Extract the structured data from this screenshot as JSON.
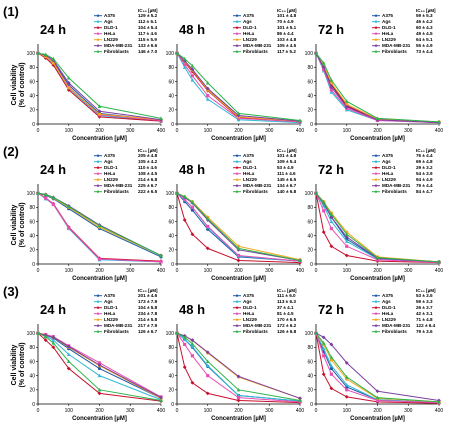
{
  "figure": {
    "shared_axes": {
      "ylabel": "Cell viability\n(% of control)",
      "xlabel": "Concentration [µM]",
      "ic50_header": "IC₅₀ [µM]"
    },
    "rows": [
      {
        "label": "(1)"
      },
      {
        "label": "(2)"
      },
      {
        "label": "(3)"
      }
    ]
  },
  "series_colors": {
    "A375": "#1e5aa8",
    "Ags": "#2eb8d6",
    "DLD-1": "#c8102e",
    "HeLa": "#e84fb4",
    "LN229": "#f2a81d",
    "MDA-MB-231": "#7b3fa0",
    "Fibroblasts": "#2db34a"
  },
  "chart_data": [
    {
      "type": "line",
      "title": "24 h",
      "row": "(1)",
      "x": [
        0,
        25,
        50,
        100,
        200,
        400
      ],
      "xticks": [
        0,
        100,
        200,
        300,
        400
      ],
      "xlim": [
        0,
        400
      ],
      "yticks": [
        0,
        20,
        40,
        60,
        80,
        100
      ],
      "ylim": [
        0,
        110
      ],
      "xlabel": "Concentration [µM]",
      "ylabel": "Cell viability\n(% of control)",
      "ic50_header": "IC₅₀ [µM]",
      "series": [
        {
          "name": "A375",
          "ic50": "129 ± 5.2",
          "values": [
            100,
            95,
            88,
            55,
            15,
            5
          ]
        },
        {
          "name": "Ags",
          "ic50": "112 ± 6.1",
          "values": [
            100,
            94,
            85,
            50,
            12,
            4
          ]
        },
        {
          "name": "DLD-1",
          "ic50": "104 ± 5.4",
          "values": [
            100,
            93,
            83,
            48,
            10,
            4
          ]
        },
        {
          "name": "HeLa",
          "ic50": "117 ± 4.6",
          "values": [
            100,
            96,
            87,
            52,
            13,
            5
          ]
        },
        {
          "name": "LN229",
          "ic50": "115 ± 5.9",
          "values": [
            100,
            95,
            86,
            51,
            14,
            6
          ]
        },
        {
          "name": "MDA-MB-231",
          "ic50": "133 ± 6.6",
          "values": [
            100,
            97,
            90,
            58,
            18,
            6
          ]
        },
        {
          "name": "Fibroblasts",
          "ic50": "146 ± 7.0",
          "values": [
            100,
            98,
            92,
            65,
            25,
            8
          ]
        }
      ]
    },
    {
      "type": "line",
      "title": "48 h",
      "row": "(1)",
      "x": [
        0,
        25,
        50,
        100,
        200,
        400
      ],
      "xticks": [
        0,
        100,
        200,
        300,
        400
      ],
      "xlim": [
        0,
        400
      ],
      "yticks": [
        0,
        20,
        40,
        60,
        80,
        100
      ],
      "ylim": [
        0,
        110
      ],
      "xlabel": "Concentration [µM]",
      "ylabel": "Cell viability\n(% of control)",
      "ic50_header": "IC₅₀ [µM]",
      "series": [
        {
          "name": "A375",
          "ic50": "101 ± 4.8",
          "values": [
            100,
            88,
            75,
            48,
            10,
            3
          ]
        },
        {
          "name": "Ags",
          "ic50": "70 ± 4.9",
          "values": [
            100,
            80,
            62,
            35,
            6,
            2
          ]
        },
        {
          "name": "DLD-1",
          "ic50": "101 ± 5.1",
          "values": [
            100,
            87,
            74,
            47,
            9,
            3
          ]
        },
        {
          "name": "HeLa",
          "ic50": "86 ± 4.4",
          "values": [
            100,
            84,
            68,
            40,
            8,
            3
          ]
        },
        {
          "name": "LN229",
          "ic50": "103 ± 4.8",
          "values": [
            100,
            88,
            76,
            48,
            10,
            4
          ]
        },
        {
          "name": "MDA-MB-231",
          "ic50": "105 ± 4.5",
          "values": [
            100,
            89,
            77,
            50,
            12,
            4
          ]
        },
        {
          "name": "Fibroblasts",
          "ic50": "117 ± 5.2",
          "values": [
            100,
            92,
            82,
            58,
            15,
            5
          ]
        }
      ]
    },
    {
      "type": "line",
      "title": "72 h",
      "row": "(1)",
      "x": [
        0,
        25,
        50,
        100,
        200,
        400
      ],
      "xticks": [
        0,
        100,
        200,
        300,
        400
      ],
      "xlim": [
        0,
        400
      ],
      "yticks": [
        0,
        20,
        40,
        60,
        80,
        100
      ],
      "ylim": [
        0,
        110
      ],
      "xlabel": "Concentration [µM]",
      "ylabel": "Cell viability\n(% of control)",
      "ic50_header": "IC₅₀ [µM]",
      "series": [
        {
          "name": "A375",
          "ic50": "59 ± 5.3",
          "values": [
            100,
            80,
            55,
            25,
            6,
            2
          ]
        },
        {
          "name": "Ags",
          "ic50": "46 ± 4.2",
          "values": [
            100,
            75,
            45,
            20,
            5,
            2
          ]
        },
        {
          "name": "DLD-1",
          "ic50": "60 ± 4.3",
          "values": [
            100,
            82,
            56,
            26,
            6,
            2
          ]
        },
        {
          "name": "HeLa",
          "ic50": "49 ± 4.5",
          "values": [
            100,
            77,
            48,
            22,
            5,
            2
          ]
        },
        {
          "name": "LN229",
          "ic50": "64 ± 5.1",
          "values": [
            100,
            83,
            58,
            28,
            7,
            3
          ]
        },
        {
          "name": "MDA-MB-231",
          "ic50": "55 ± 4.9",
          "values": [
            100,
            80,
            52,
            24,
            6,
            2
          ]
        },
        {
          "name": "Fibroblasts",
          "ic50": "73 ± 4.4",
          "values": [
            100,
            86,
            62,
            32,
            8,
            3
          ]
        }
      ]
    },
    {
      "type": "line",
      "title": "24 h",
      "row": "(2)",
      "x": [
        0,
        25,
        50,
        100,
        200,
        400
      ],
      "xticks": [
        0,
        100,
        200,
        300,
        400
      ],
      "xlim": [
        0,
        400
      ],
      "yticks": [
        0,
        20,
        40,
        60,
        80,
        100
      ],
      "ylim": [
        0,
        110
      ],
      "xlabel": "Concentration [µM]",
      "ylabel": "Cell viability\n(% of control)",
      "ic50_header": "IC₅₀ [µM]",
      "series": [
        {
          "name": "A375",
          "ic50": "205 ± 4.8",
          "values": [
            100,
            97,
            92,
            78,
            50,
            10
          ]
        },
        {
          "name": "Ags",
          "ic50": "105 ± 4.2",
          "values": [
            100,
            92,
            84,
            50,
            6,
            3
          ]
        },
        {
          "name": "DLD-1",
          "ic50": "110 ± 4.6",
          "values": [
            100,
            93,
            85,
            52,
            8,
            4
          ]
        },
        {
          "name": "HeLa",
          "ic50": "108 ± 4.5",
          "values": [
            100,
            93,
            84,
            51,
            7,
            3
          ]
        },
        {
          "name": "LN229",
          "ic50": "214 ± 6.8",
          "values": [
            100,
            98,
            93,
            80,
            52,
            12
          ]
        },
        {
          "name": "MDA-MB-231",
          "ic50": "225 ± 6.7",
          "values": [
            100,
            98,
            94,
            82,
            55,
            12
          ]
        },
        {
          "name": "Fibroblasts",
          "ic50": "222 ± 6.5",
          "values": [
            100,
            98,
            94,
            81,
            54,
            12
          ]
        }
      ]
    },
    {
      "type": "line",
      "title": "48 h",
      "row": "(2)",
      "x": [
        0,
        25,
        50,
        100,
        200,
        400
      ],
      "xticks": [
        0,
        100,
        200,
        300,
        400
      ],
      "xlim": [
        0,
        400
      ],
      "yticks": [
        0,
        20,
        40,
        60,
        80,
        100
      ],
      "ylim": [
        0,
        110
      ],
      "xlabel": "Concentration [µM]",
      "ylabel": "Cell viability\n(% of control)",
      "ic50_header": "IC₅₀ [µM]",
      "series": [
        {
          "name": "A375",
          "ic50": "101 ± 4.8",
          "values": [
            100,
            88,
            76,
            49,
            10,
            4
          ]
        },
        {
          "name": "Ags",
          "ic50": "109 ± 5.4",
          "values": [
            100,
            90,
            80,
            52,
            11,
            4
          ]
        },
        {
          "name": "DLD-1",
          "ic50": "53 ± 4.9",
          "values": [
            100,
            62,
            42,
            22,
            5,
            2
          ]
        },
        {
          "name": "HeLa",
          "ic50": "111 ± 4.6",
          "values": [
            100,
            91,
            80,
            53,
            12,
            4
          ]
        },
        {
          "name": "LN229",
          "ic50": "145 ± 6.5",
          "values": [
            100,
            95,
            88,
            66,
            25,
            6
          ]
        },
        {
          "name": "MDA-MB-231",
          "ic50": "134 ± 6.7",
          "values": [
            100,
            94,
            86,
            62,
            20,
            5
          ]
        },
        {
          "name": "Fibroblasts",
          "ic50": "140 ± 6.8",
          "values": [
            100,
            95,
            87,
            64,
            22,
            5
          ]
        }
      ]
    },
    {
      "type": "line",
      "title": "72 h",
      "row": "(2)",
      "x": [
        0,
        25,
        50,
        100,
        200,
        400
      ],
      "xticks": [
        0,
        100,
        200,
        300,
        400
      ],
      "xlim": [
        0,
        400
      ],
      "yticks": [
        0,
        20,
        40,
        60,
        80,
        100
      ],
      "ylim": [
        0,
        110
      ],
      "xlabel": "Concentration [µM]",
      "ylabel": "Cell viability\n(% of control)",
      "ic50_header": "IC₅₀ [µM]",
      "series": [
        {
          "name": "A375",
          "ic50": "76 ± 4.4",
          "values": [
            100,
            85,
            66,
            35,
            8,
            3
          ]
        },
        {
          "name": "Ags",
          "ic50": "69 ± 4.8",
          "values": [
            100,
            82,
            60,
            32,
            7,
            3
          ]
        },
        {
          "name": "DLD-1",
          "ic50": "29 ± 3.2",
          "values": [
            100,
            45,
            25,
            12,
            4,
            2
          ]
        },
        {
          "name": "HeLa",
          "ic50": "54 ± 3.9",
          "values": [
            100,
            75,
            50,
            25,
            6,
            2
          ]
        },
        {
          "name": "LN229",
          "ic50": "94 ± 4.9",
          "values": [
            100,
            88,
            72,
            45,
            10,
            3
          ]
        },
        {
          "name": "MDA-MB-231",
          "ic50": "79 ± 4.4",
          "values": [
            100,
            86,
            66,
            38,
            8,
            3
          ]
        },
        {
          "name": "Fibroblasts",
          "ic50": "84 ± 4.7",
          "values": [
            100,
            87,
            70,
            42,
            9,
            3
          ]
        }
      ]
    },
    {
      "type": "line",
      "title": "24 h",
      "row": "(3)",
      "x": [
        0,
        25,
        50,
        100,
        200,
        400
      ],
      "xticks": [
        0,
        100,
        200,
        300,
        400
      ],
      "xlim": [
        0,
        400
      ],
      "yticks": [
        0,
        20,
        40,
        60,
        80,
        100
      ],
      "ylim": [
        0,
        110
      ],
      "xlabel": "Concentration [µM]",
      "ylabel": "Cell viability\n(% of control)",
      "ic50_header": "IC₅₀ [µM]",
      "series": [
        {
          "name": "A375",
          "ic50": "201 ± 4.6",
          "values": [
            100,
            97,
            93,
            78,
            50,
            8
          ]
        },
        {
          "name": "Ags",
          "ic50": "173 ± 7.9",
          "values": [
            100,
            96,
            90,
            70,
            40,
            6
          ]
        },
        {
          "name": "DLD-1",
          "ic50": "104 ± 5.8",
          "values": [
            100,
            90,
            80,
            50,
            15,
            4
          ]
        },
        {
          "name": "HeLa",
          "ic50": "234 ± 7.8",
          "values": [
            100,
            98,
            95,
            82,
            58,
            10
          ]
        },
        {
          "name": "LN229",
          "ic50": "214 ± 5.8",
          "values": [
            100,
            97,
            94,
            80,
            54,
            8
          ]
        },
        {
          "name": "MDA-MB-231",
          "ic50": "217 ± 7.9",
          "values": [
            100,
            97,
            94,
            81,
            55,
            9
          ]
        },
        {
          "name": "Fibroblasts",
          "ic50": "126 ± 6.7",
          "values": [
            100,
            95,
            86,
            60,
            20,
            5
          ]
        }
      ]
    },
    {
      "type": "line",
      "title": "48 h",
      "row": "(3)",
      "x": [
        0,
        25,
        50,
        100,
        200,
        400
      ],
      "xticks": [
        0,
        100,
        200,
        300,
        400
      ],
      "xlim": [
        0,
        400
      ],
      "yticks": [
        0,
        20,
        40,
        60,
        80,
        100
      ],
      "ylim": [
        0,
        110
      ],
      "xlabel": "Concentration [µM]",
      "ylabel": "Cell viability\n(% of control)",
      "ic50_header": "IC₅₀ [µM]",
      "series": [
        {
          "name": "A375",
          "ic50": "111 ± 6.0",
          "values": [
            100,
            91,
            80,
            53,
            12,
            4
          ]
        },
        {
          "name": "Ags",
          "ic50": "113 ± 6.3",
          "values": [
            100,
            91,
            81,
            54,
            12,
            4
          ]
        },
        {
          "name": "DLD-1",
          "ic50": "37 ± 4.1",
          "values": [
            100,
            52,
            30,
            15,
            5,
            2
          ]
        },
        {
          "name": "HeLa",
          "ic50": "81 ± 4.5",
          "values": [
            100,
            84,
            68,
            40,
            9,
            3
          ]
        },
        {
          "name": "LN229",
          "ic50": "170 ± 6.5",
          "values": [
            100,
            96,
            90,
            72,
            38,
            8
          ]
        },
        {
          "name": "MDA-MB-231",
          "ic50": "172 ± 6.2",
          "values": [
            100,
            96,
            90,
            73,
            39,
            8
          ]
        },
        {
          "name": "Fibroblasts",
          "ic50": "126 ± 6.8",
          "values": [
            100,
            94,
            85,
            60,
            20,
            5
          ]
        }
      ]
    },
    {
      "type": "line",
      "title": "72 h",
      "row": "(3)",
      "x": [
        0,
        25,
        50,
        100,
        200,
        400
      ],
      "xticks": [
        0,
        100,
        200,
        300,
        400
      ],
      "xlim": [
        0,
        400
      ],
      "yticks": [
        0,
        20,
        40,
        60,
        80,
        100
      ],
      "ylim": [
        0,
        110
      ],
      "xlabel": "Concentration [µM]",
      "ylabel": "Cell viability\n(% of control)",
      "ic50_header": "IC₅₀ [µM]",
      "series": [
        {
          "name": "A375",
          "ic50": "53 ± 3.5",
          "values": [
            100,
            74,
            50,
            24,
            6,
            2
          ]
        },
        {
          "name": "Ags",
          "ic50": "59 ± 3.3",
          "values": [
            100,
            78,
            54,
            27,
            6,
            2
          ]
        },
        {
          "name": "DLD-1",
          "ic50": "26 ± 3.7",
          "values": [
            100,
            42,
            22,
            10,
            3,
            1
          ]
        },
        {
          "name": "HeLa",
          "ic50": "42 ± 3.1",
          "values": [
            100,
            68,
            42,
            20,
            5,
            2
          ]
        },
        {
          "name": "LN229",
          "ic50": "71 ± 4.8",
          "values": [
            100,
            84,
            62,
            35,
            8,
            3
          ]
        },
        {
          "name": "MDA-MB-231",
          "ic50": "122 ± 6.4",
          "values": [
            100,
            94,
            84,
            58,
            18,
            5
          ]
        },
        {
          "name": "Fibroblasts",
          "ic50": "79 ± 3.6",
          "values": [
            100,
            86,
            66,
            38,
            9,
            3
          ]
        }
      ]
    }
  ]
}
